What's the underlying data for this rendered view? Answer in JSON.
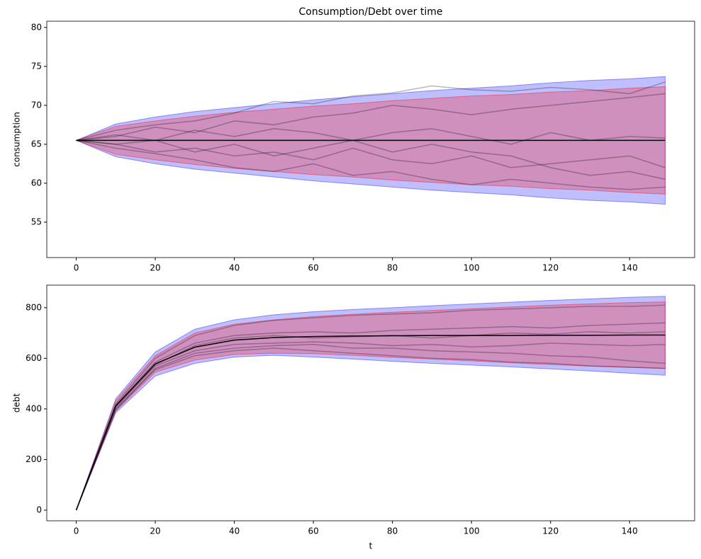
{
  "chart_data": [
    {
      "type": "line",
      "title": "Consumption/Debt over time",
      "ylabel": "consumption",
      "x": [
        0,
        10,
        20,
        30,
        40,
        50,
        60,
        70,
        80,
        90,
        100,
        110,
        120,
        130,
        140,
        149
      ],
      "xlim": [
        -7.45,
        156.45
      ],
      "xticks": [
        0,
        20,
        40,
        60,
        80,
        100,
        120,
        140
      ],
      "ylim": [
        50.45,
        80.8
      ],
      "yticks": [
        55,
        60,
        65,
        70,
        75,
        80
      ],
      "grid": false,
      "bands": [
        {
          "color": "#0000ff",
          "opacity": 0.25,
          "upper": [
            65.5,
            67.6,
            68.5,
            69.2,
            69.7,
            70.2,
            70.7,
            71.1,
            71.5,
            71.9,
            72.2,
            72.5,
            72.9,
            73.2,
            73.4,
            73.7
          ],
          "lower": [
            65.5,
            63.4,
            62.5,
            61.8,
            61.3,
            60.8,
            60.3,
            59.9,
            59.5,
            59.1,
            58.8,
            58.5,
            58.1,
            57.8,
            57.6,
            57.3
          ]
        },
        {
          "color": "#ff0000",
          "opacity": 0.25,
          "upper": [
            65.5,
            67.3,
            68.0,
            68.6,
            69.1,
            69.5,
            69.9,
            70.2,
            70.6,
            70.9,
            71.2,
            71.4,
            71.7,
            71.9,
            72.2,
            72.4
          ],
          "lower": [
            65.5,
            63.7,
            63.0,
            62.4,
            61.9,
            61.5,
            61.1,
            60.8,
            60.4,
            60.1,
            59.8,
            59.6,
            59.3,
            59.1,
            58.8,
            58.6
          ]
        }
      ],
      "series": [
        {
          "color": "#000000",
          "opacity": 0.28,
          "values": [
            65.5,
            66.8,
            67.5,
            68.0,
            69.0,
            70.5,
            70.2,
            71.2,
            71.6,
            72.5,
            72.0,
            71.8,
            72.3,
            72.0,
            71.5,
            73.0
          ]
        },
        {
          "color": "#000000",
          "opacity": 0.28,
          "values": [
            65.5,
            64.5,
            63.8,
            63.0,
            62.0,
            61.5,
            62.5,
            61.0,
            61.5,
            60.5,
            59.8,
            60.5,
            60.0,
            59.5,
            59.2,
            59.5
          ]
        },
        {
          "color": "#000000",
          "opacity": 0.28,
          "values": [
            65.5,
            66.0,
            67.2,
            66.5,
            68.0,
            67.5,
            68.5,
            69.0,
            70.0,
            69.5,
            68.8,
            69.5,
            70.0,
            70.5,
            71.0,
            71.5
          ]
        },
        {
          "color": "#000000",
          "opacity": 0.28,
          "values": [
            65.5,
            65.0,
            64.0,
            64.5,
            63.5,
            64.0,
            63.0,
            64.5,
            63.0,
            62.5,
            63.5,
            62.0,
            62.5,
            63.0,
            63.5,
            62.0
          ]
        },
        {
          "color": "#000000",
          "opacity": 0.28,
          "values": [
            65.5,
            66.2,
            65.5,
            66.8,
            66.0,
            67.0,
            66.5,
            65.5,
            66.5,
            67.0,
            66.0,
            65.0,
            66.5,
            65.5,
            66.0,
            65.8
          ]
        },
        {
          "color": "#000000",
          "opacity": 0.28,
          "values": [
            65.5,
            65.0,
            65.5,
            64.0,
            65.0,
            63.5,
            64.5,
            65.5,
            64.0,
            65.0,
            64.0,
            63.5,
            62.0,
            61.0,
            61.5,
            60.5
          ]
        },
        {
          "color": "#000000",
          "opacity": 1,
          "values": [
            65.5,
            65.5,
            65.5,
            65.5,
            65.5,
            65.5,
            65.5,
            65.5,
            65.5,
            65.5,
            65.5,
            65.5,
            65.5,
            65.5,
            65.5,
            65.5
          ]
        }
      ]
    },
    {
      "type": "line",
      "ylabel": "debt",
      "xlabel": "t",
      "x": [
        0,
        10,
        20,
        30,
        40,
        50,
        60,
        70,
        80,
        90,
        100,
        110,
        120,
        130,
        140,
        149
      ],
      "xlim": [
        -7.45,
        156.45
      ],
      "xticks": [
        0,
        20,
        40,
        60,
        80,
        100,
        120,
        140
      ],
      "ylim": [
        -42,
        889
      ],
      "yticks": [
        0,
        200,
        400,
        600,
        800
      ],
      "grid": false,
      "bands": [
        {
          "color": "#0000ff",
          "opacity": 0.25,
          "upper": [
            0,
            440,
            625,
            715,
            752,
            772,
            784,
            793,
            800,
            808,
            815,
            822,
            829,
            835,
            841,
            845
          ],
          "lower": [
            0,
            385,
            530,
            580,
            605,
            612,
            605,
            597,
            588,
            580,
            573,
            566,
            558,
            550,
            541,
            533
          ]
        },
        {
          "color": "#ff0000",
          "opacity": 0.25,
          "upper": [
            0,
            433,
            610,
            700,
            735,
            752,
            765,
            774,
            782,
            789,
            796,
            803,
            810,
            815,
            820,
            823
          ],
          "lower": [
            0,
            392,
            545,
            593,
            615,
            620,
            618,
            612,
            604,
            597,
            590,
            582,
            575,
            569,
            564,
            560
          ]
        }
      ],
      "series": [
        {
          "color": "#000000",
          "opacity": 0.28,
          "values": [
            0,
            420,
            600,
            690,
            730,
            750,
            760,
            770,
            775,
            780,
            790,
            795,
            800,
            805,
            805,
            810
          ]
        },
        {
          "color": "#000000",
          "opacity": 0.28,
          "values": [
            0,
            400,
            555,
            610,
            630,
            640,
            630,
            620,
            610,
            600,
            595,
            585,
            580,
            570,
            565,
            560
          ]
        },
        {
          "color": "#000000",
          "opacity": 0.28,
          "values": [
            0,
            415,
            585,
            660,
            690,
            700,
            705,
            700,
            710,
            715,
            720,
            725,
            720,
            730,
            735,
            740
          ]
        },
        {
          "color": "#000000",
          "opacity": 0.28,
          "values": [
            0,
            405,
            570,
            630,
            655,
            660,
            665,
            660,
            650,
            655,
            645,
            650,
            660,
            655,
            650,
            655
          ]
        },
        {
          "color": "#000000",
          "opacity": 0.28,
          "values": [
            0,
            410,
            575,
            650,
            680,
            690,
            680,
            685,
            690,
            680,
            690,
            700,
            695,
            705,
            700,
            705
          ]
        },
        {
          "color": "#000000",
          "opacity": 0.28,
          "values": [
            0,
            395,
            560,
            620,
            640,
            650,
            655,
            640,
            640,
            630,
            625,
            620,
            610,
            605,
            590,
            580
          ]
        },
        {
          "color": "#000000",
          "opacity": 1,
          "values": [
            0,
            412,
            578,
            644,
            672,
            682,
            686,
            688,
            689,
            690,
            690,
            690,
            691,
            691,
            692,
            692
          ]
        }
      ]
    }
  ]
}
